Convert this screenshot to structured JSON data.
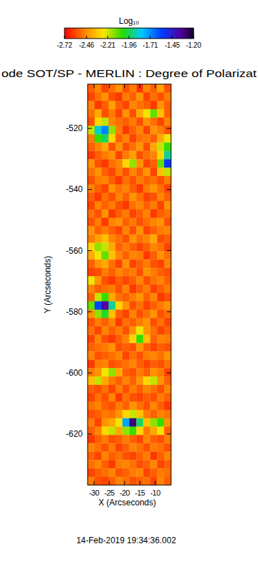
{
  "chart_data": {
    "type": "heatmap",
    "title": "ode SOT/SP - MERLIN : Degree of Polarizat",
    "annotations": [
      "14-Feb-2019 19:34:36.002"
    ],
    "x_label": "X (Arcseconds)",
    "y_label": "Y (Arcseconds)",
    "xlim": [
      -32.1,
      -4.8
    ],
    "ylim": [
      -636.7,
      -505.5
    ],
    "xticks": [
      -30,
      -25,
      -20,
      -15,
      -10
    ],
    "yticks": [
      -520,
      -540,
      -560,
      -580,
      -600,
      -620
    ],
    "cells": [
      [
        -2.55,
        -2.48,
        -2.6,
        -2.52,
        -2.45,
        -2.58,
        -2.5,
        -2.62,
        -2.48,
        -2.55,
        -2.42,
        -2.58
      ],
      [
        -2.6,
        -2.52,
        -2.45,
        -2.58,
        -2.62,
        -2.5,
        -2.55,
        -2.45,
        -2.6,
        -2.52,
        -2.58,
        -2.5
      ],
      [
        -2.48,
        -2.62,
        -2.55,
        -2.42,
        -2.55,
        -2.6,
        -2.48,
        -2.52,
        -2.55,
        -2.62,
        -2.45,
        -2.55
      ],
      [
        -2.52,
        -2.4,
        -2.58,
        -2.5,
        -2.6,
        -2.45,
        -2.58,
        -2.4,
        -2.25,
        -2.1,
        -2.35,
        -2.55
      ],
      [
        -2.58,
        -2.3,
        -2.2,
        -2.48,
        -2.52,
        -2.55,
        -2.5,
        -2.58,
        -2.45,
        -2.52,
        -2.6,
        -2.48
      ],
      [
        -2.2,
        -1.85,
        -1.7,
        -2.15,
        -2.5,
        -2.62,
        -2.55,
        -2.48,
        -2.6,
        -2.45,
        -2.5,
        -2.58
      ],
      [
        -2.5,
        -2.05,
        -1.95,
        -2.3,
        -2.55,
        -2.48,
        -2.6,
        -2.52,
        -2.5,
        -2.55,
        -2.4,
        -2.25
      ],
      [
        -2.55,
        -2.48,
        -2.4,
        -2.58,
        -2.45,
        -2.58,
        -2.52,
        -2.45,
        -2.58,
        -2.4,
        -2.2,
        -2.05
      ],
      [
        -2.62,
        -2.55,
        -2.5,
        -2.45,
        -2.6,
        -2.5,
        -2.42,
        -2.58,
        -2.52,
        -2.48,
        -2.3,
        -1.9
      ],
      [
        -2.45,
        -2.58,
        -2.62,
        -2.52,
        -2.48,
        -2.3,
        -2.15,
        -2.45,
        -2.6,
        -2.55,
        -2.1,
        -1.55
      ],
      [
        -2.52,
        -2.45,
        -2.55,
        -2.6,
        -2.5,
        -2.58,
        -2.48,
        -2.55,
        -2.45,
        -2.6,
        -2.35,
        -2.2
      ],
      [
        -2.58,
        -2.5,
        -2.48,
        -2.55,
        -2.62,
        -2.52,
        -2.58,
        -2.5,
        -2.55,
        -2.52,
        -2.58,
        -2.5
      ],
      [
        -2.48,
        -2.55,
        -2.6,
        -2.45,
        -2.52,
        -2.48,
        -2.55,
        -2.62,
        -2.5,
        -2.45,
        -2.52,
        -2.6
      ],
      [
        -2.55,
        -2.62,
        -2.52,
        -2.58,
        -2.48,
        -2.55,
        -2.45,
        -2.52,
        -2.6,
        -2.58,
        -2.48,
        -2.55
      ],
      [
        -2.6,
        -2.48,
        -2.55,
        -2.5,
        -2.58,
        -2.62,
        -2.52,
        -2.48,
        -2.55,
        -2.5,
        -2.6,
        -2.45
      ],
      [
        -2.52,
        -2.58,
        -2.45,
        -2.62,
        -2.55,
        -2.5,
        -2.6,
        -2.55,
        -2.48,
        -2.62,
        -2.55,
        -2.52
      ],
      [
        -2.58,
        -2.5,
        -2.62,
        -2.48,
        -2.45,
        -2.55,
        -2.5,
        -2.58,
        -2.52,
        -2.48,
        -2.45,
        -2.58
      ],
      [
        -2.45,
        -2.55,
        -2.5,
        -2.55,
        -2.6,
        -2.48,
        -2.58,
        -2.45,
        -2.6,
        -2.55,
        -2.5,
        -2.48
      ],
      [
        -2.5,
        -2.42,
        -2.35,
        -2.48,
        -2.52,
        -2.58,
        -2.45,
        -2.52,
        -2.48,
        -2.4,
        -2.58,
        -2.55
      ],
      [
        -2.3,
        -2.15,
        -2.2,
        -2.4,
        -2.55,
        -2.5,
        -2.55,
        -2.6,
        -2.55,
        -2.48,
        -2.52,
        -2.6
      ],
      [
        -2.4,
        -2.25,
        -2.1,
        -2.35,
        -2.48,
        -2.55,
        -2.48,
        -2.5,
        -2.62,
        -2.55,
        -2.45,
        -2.52
      ],
      [
        -2.55,
        -2.45,
        -2.4,
        -2.52,
        -2.6,
        -2.45,
        -2.6,
        -2.55,
        -2.5,
        -2.58,
        -2.6,
        -2.48
      ],
      [
        -2.6,
        -2.58,
        -2.5,
        -2.55,
        -2.48,
        -2.52,
        -2.5,
        -2.58,
        -2.45,
        -2.5,
        -2.55,
        -2.58
      ],
      [
        -2.25,
        -2.45,
        -2.58,
        -2.62,
        -2.55,
        -2.6,
        -2.55,
        -2.48,
        -2.58,
        -2.52,
        -2.48,
        -2.55
      ],
      [
        -2.48,
        -2.55,
        -2.52,
        -2.5,
        -2.58,
        -2.48,
        -2.62,
        -2.55,
        -2.5,
        -2.6,
        -2.55,
        -2.5
      ],
      [
        -2.55,
        -2.2,
        -2.05,
        -2.4,
        -2.52,
        -2.55,
        -2.5,
        -2.45,
        -2.55,
        -2.48,
        -2.62,
        -2.58
      ],
      [
        -2.1,
        -1.6,
        -1.35,
        -1.9,
        -2.3,
        -2.45,
        -2.58,
        -2.52,
        -2.6,
        -2.55,
        -2.5,
        -2.45
      ],
      [
        -2.45,
        -2.15,
        -2.0,
        -2.35,
        -2.55,
        -2.6,
        -2.48,
        -2.58,
        -2.52,
        -2.45,
        -2.58,
        -2.52
      ],
      [
        -2.58,
        -2.5,
        -2.55,
        -2.48,
        -2.62,
        -2.52,
        -2.55,
        -2.5,
        -2.45,
        -2.58,
        -2.52,
        -2.6
      ],
      [
        -2.52,
        -2.6,
        -2.48,
        -2.55,
        -2.5,
        -2.58,
        -2.45,
        -2.25,
        -2.45,
        -2.52,
        -2.6,
        -2.55
      ],
      [
        -2.6,
        -2.48,
        -2.58,
        -2.62,
        -2.55,
        -2.48,
        -2.3,
        -2.05,
        -2.35,
        -2.55,
        -2.48,
        -2.5
      ],
      [
        -2.55,
        -2.52,
        -2.5,
        -2.45,
        -2.58,
        -2.55,
        -2.58,
        -2.45,
        -2.55,
        -2.6,
        -2.55,
        -2.58
      ],
      [
        -2.48,
        -2.58,
        -2.55,
        -2.52,
        -2.48,
        -2.6,
        -2.52,
        -2.58,
        -2.5,
        -2.48,
        -2.52,
        -2.45
      ],
      [
        -2.62,
        -2.5,
        -2.48,
        -2.58,
        -2.55,
        -2.52,
        -2.48,
        -2.55,
        -2.6,
        -2.55,
        -2.58,
        -2.52
      ],
      [
        -2.5,
        -2.45,
        -2.25,
        -2.15,
        -2.4,
        -2.55,
        -2.58,
        -2.5,
        -2.55,
        -2.45,
        -2.5,
        -2.6
      ],
      [
        -2.35,
        -2.2,
        -2.4,
        -2.5,
        -2.55,
        -2.48,
        -2.55,
        -2.45,
        -2.3,
        -2.2,
        -2.45,
        -2.55
      ],
      [
        -2.55,
        -2.58,
        -2.52,
        -2.6,
        -2.5,
        -2.58,
        -2.5,
        -2.55,
        -2.48,
        -2.52,
        -2.58,
        -2.48
      ],
      [
        -2.6,
        -2.52,
        -2.58,
        -2.48,
        -2.62,
        -2.52,
        -2.58,
        -2.6,
        -2.55,
        -2.58,
        -2.5,
        -2.55
      ],
      [
        -2.52,
        -2.48,
        -2.55,
        -2.58,
        -2.5,
        -2.55,
        -2.45,
        -2.52,
        -2.58,
        -2.48,
        -2.55,
        -2.62
      ],
      [
        -2.58,
        -2.55,
        -2.5,
        -2.52,
        -2.45,
        -2.3,
        -2.2,
        -2.35,
        -2.5,
        -2.55,
        -2.48,
        -2.52
      ],
      [
        -2.5,
        -2.6,
        -2.45,
        -2.4,
        -2.25,
        -1.75,
        -1.3,
        -1.95,
        -2.35,
        -2.15,
        -2.05,
        -2.45
      ],
      [
        -2.55,
        -2.48,
        -2.3,
        -2.2,
        -2.4,
        -2.15,
        -2.05,
        -2.3,
        -2.5,
        -2.4,
        -2.25,
        -2.55
      ],
      [
        -2.62,
        -2.55,
        -2.5,
        -2.58,
        -2.55,
        -2.5,
        -2.55,
        -2.6,
        -2.48,
        -2.55,
        -2.58,
        -2.5
      ],
      [
        -2.48,
        -2.52,
        -2.58,
        -2.5,
        -2.6,
        -2.55,
        -2.48,
        -2.52,
        -2.58,
        -2.5,
        -2.52,
        -2.58
      ],
      [
        -2.55,
        -2.6,
        -2.48,
        -2.55,
        -2.52,
        -2.58,
        -2.6,
        -2.55,
        -2.5,
        -2.62,
        -2.55,
        -2.48
      ],
      [
        -2.52,
        -2.48,
        -2.55,
        -2.62,
        -2.5,
        -2.48,
        -2.52,
        -2.58,
        -2.55,
        -2.48,
        -2.6,
        -2.55
      ],
      [
        -2.6,
        -2.55,
        -2.52,
        -2.48,
        -2.58,
        -2.55,
        -2.5,
        -2.48,
        -2.6,
        -2.55,
        -2.5,
        -2.52
      ],
      [
        -2.5,
        -2.58,
        -2.6,
        -2.55,
        -2.48,
        -2.52,
        -2.58,
        -2.55,
        -2.52,
        -2.6,
        -2.48,
        -2.55
      ]
    ],
    "colorbar": {
      "label": "Log₁₀",
      "range": [
        -2.72,
        -1.2
      ],
      "ticks": [
        -2.72,
        -2.46,
        -2.21,
        -1.96,
        -1.71,
        -1.45,
        {
          "value": -1.2,
          "label": "-1.20"
        }
      ]
    }
  }
}
